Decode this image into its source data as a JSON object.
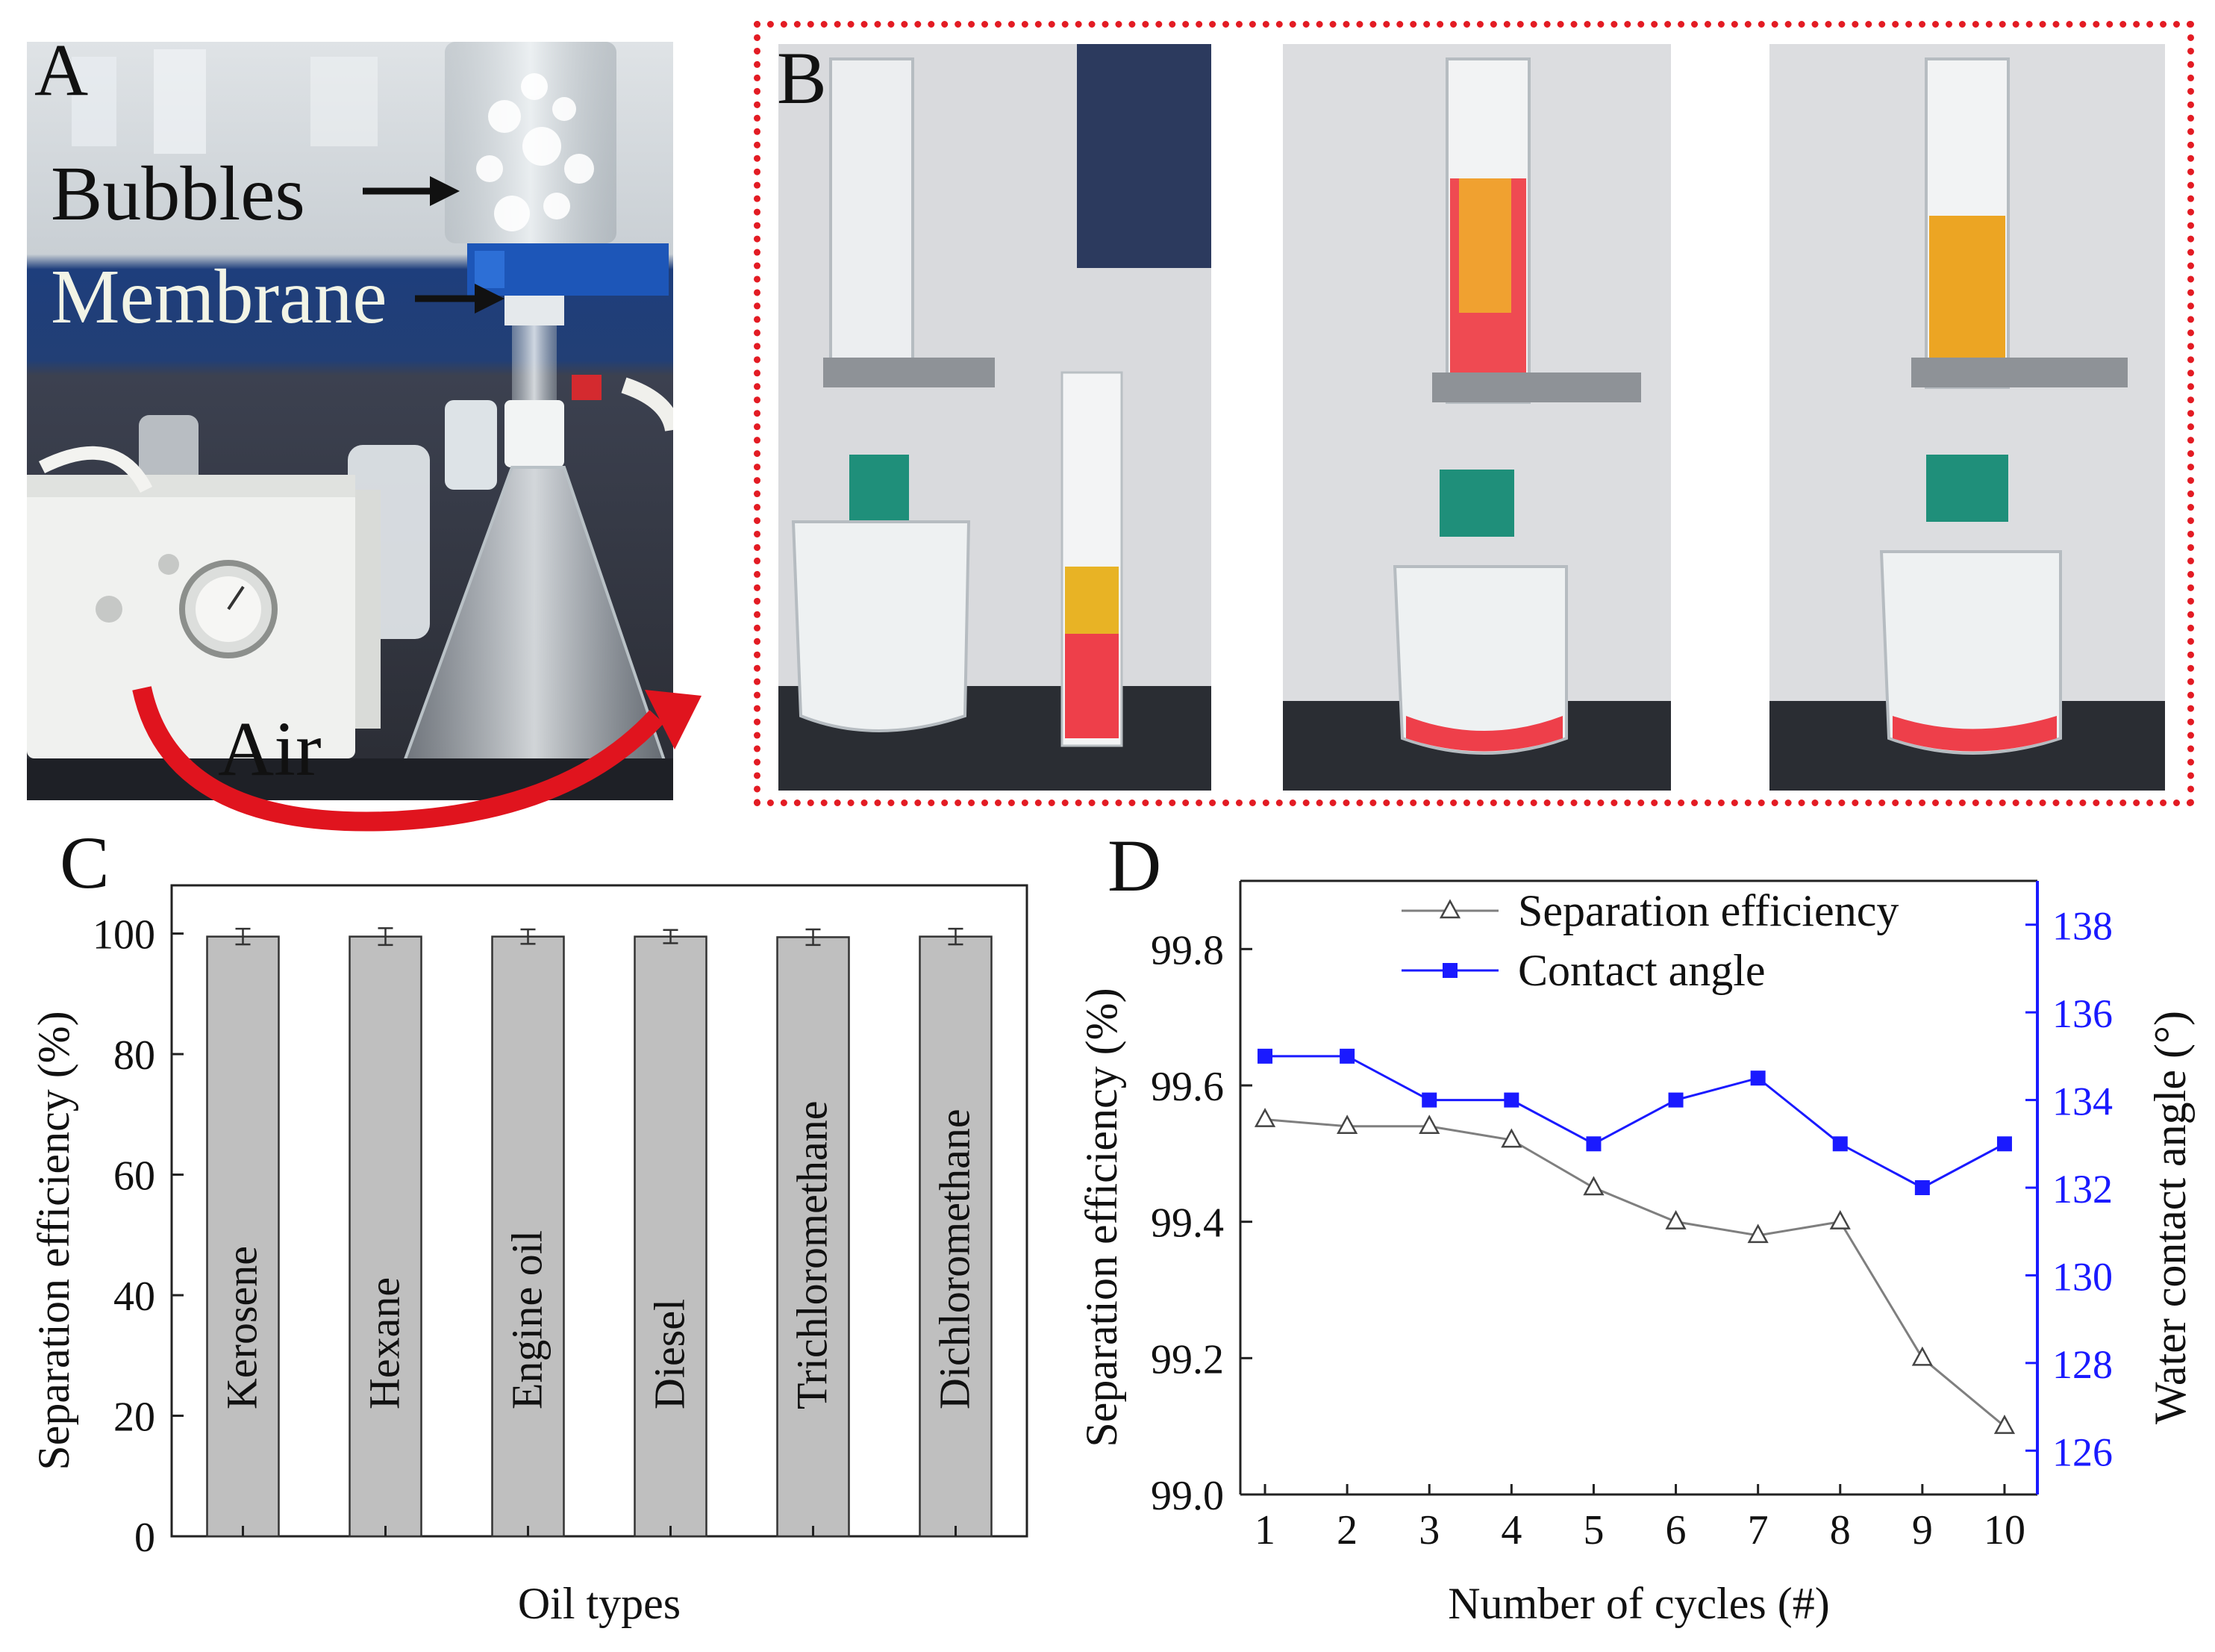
{
  "panels": {
    "a": {
      "letter": "A",
      "labels": {
        "bubbles": "Bubbles",
        "membrane": "Membrane",
        "air": "Air"
      }
    },
    "b": {
      "letter": "B"
    },
    "c": {
      "letter": "C"
    },
    "d": {
      "letter": "D"
    }
  },
  "colors": {
    "frame_dotted": "#e31b23",
    "bar_fill": "#bfbfbf",
    "series_efficiency": "#7f7f7f",
    "series_contact_angle": "#1a1aff",
    "air_arrow": "#e0141e"
  },
  "icons": [
    "bubbles-arrow-icon",
    "membrane-arrow-icon",
    "air-flow-arrow-icon"
  ],
  "chart_data": [
    {
      "panel": "C",
      "type": "bar",
      "categories": [
        "Kerosene",
        "Hexane",
        "Engine oil",
        "Diesel",
        "Trichloromethane",
        "Dichloromethane"
      ],
      "values": [
        99.5,
        99.5,
        99.5,
        99.5,
        99.4,
        99.5
      ],
      "errors": [
        1.3,
        1.4,
        1.2,
        1.1,
        1.3,
        1.3
      ],
      "xlabel": "Oil types",
      "ylabel": "Separation efficiency (%)",
      "ylim": [
        0,
        108
      ],
      "yticks": [
        0,
        20,
        40,
        60,
        80,
        100
      ],
      "category_labels_inside_bars": true,
      "grid": false
    },
    {
      "panel": "D",
      "type": "line",
      "x": [
        1,
        2,
        3,
        4,
        5,
        6,
        7,
        8,
        9,
        10
      ],
      "xlabel": "Number of cycles (#)",
      "xlim": [
        0.7,
        10.4
      ],
      "series": [
        {
          "name": "Separation efficiency",
          "axis": "left",
          "marker": "open-triangle",
          "values": [
            99.55,
            99.54,
            99.54,
            99.52,
            99.45,
            99.4,
            99.38,
            99.4,
            99.2,
            99.1
          ]
        },
        {
          "name": "Contact angle",
          "axis": "right",
          "marker": "filled-square",
          "values": [
            135,
            135,
            134,
            134,
            133,
            134,
            134.5,
            133,
            132,
            133
          ]
        }
      ],
      "ylabel": "Separation efficiency (%)",
      "ylim": [
        99.0,
        99.9
      ],
      "yticks": [
        99.0,
        99.2,
        99.4,
        99.6,
        99.8
      ],
      "y2label": "Water contact angle (°)",
      "y2lim": [
        125,
        139
      ],
      "y2ticks": [
        126,
        128,
        130,
        132,
        134,
        136,
        138
      ],
      "legend": "top-center",
      "grid": false
    }
  ]
}
